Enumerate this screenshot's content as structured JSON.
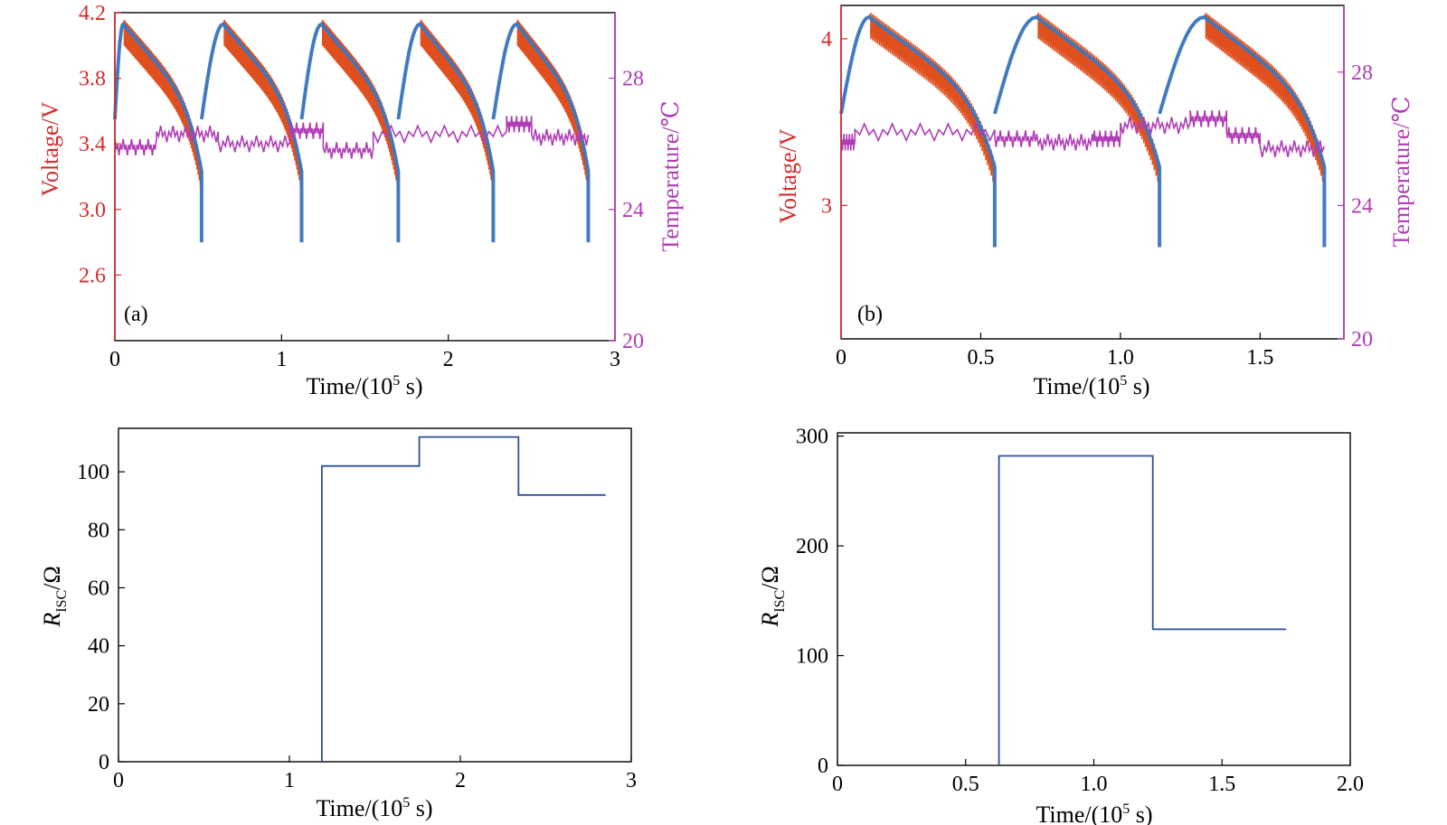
{
  "colors": {
    "voltage_axis": "#d42a2a",
    "temperature_axis": "#b03cb5",
    "measured_voltage": "#e0501e",
    "model_voltage": "#3a78c2",
    "temperature": "#b03cb5",
    "risc": "#2f4f9a",
    "frame": "#000000"
  },
  "chart_data": [
    {
      "id": "a-top",
      "type": "line",
      "panel_label": "(a)",
      "xlabel_prefix": "Time/(10",
      "xlabel_sup": "5",
      "xlabel_suffix": " s)",
      "ylabel": "Voltage/V",
      "y2label": "Temperature/℃",
      "xlim": [
        0,
        3
      ],
      "ylim": [
        2.2,
        4.2
      ],
      "y2lim": [
        20,
        30
      ],
      "xticks": [
        "0",
        "1",
        "2",
        "3"
      ],
      "yticks": [
        "2.6",
        "3.0",
        "3.4",
        "3.8",
        "4.2"
      ],
      "y2ticks": [
        "20",
        "24",
        "28"
      ],
      "cycles": [
        {
          "start": 0.0,
          "peak_x": 0.05,
          "end": 0.52,
          "min_v": 2.8
        },
        {
          "start": 0.52,
          "peak_x": 0.65,
          "end": 1.12,
          "min_v": 2.8
        },
        {
          "start": 1.12,
          "peak_x": 1.24,
          "end": 1.7,
          "min_v": 2.8
        },
        {
          "start": 1.7,
          "peak_x": 1.83,
          "end": 2.27,
          "min_v": 2.8
        },
        {
          "start": 2.27,
          "peak_x": 2.41,
          "end": 2.84,
          "min_v": 2.8
        }
      ],
      "peak_voltage": 4.13,
      "temperature_levels": [
        {
          "x": [
            0.0,
            0.25
          ],
          "t": 25.9
        },
        {
          "x": [
            0.25,
            0.62
          ],
          "t": 26.3
        },
        {
          "x": [
            0.62,
            1.05
          ],
          "t": 26.0
        },
        {
          "x": [
            1.05,
            1.25
          ],
          "t": 26.4
        },
        {
          "x": [
            1.25,
            1.55
          ],
          "t": 25.8
        },
        {
          "x": [
            1.55,
            2.35
          ],
          "t": 26.3
        },
        {
          "x": [
            2.35,
            2.5
          ],
          "t": 26.6
        },
        {
          "x": [
            2.5,
            2.84
          ],
          "t": 26.2
        }
      ]
    },
    {
      "id": "b-top",
      "type": "line",
      "panel_label": "(b)",
      "xlabel_prefix": "Time/(10",
      "xlabel_sup": "5",
      "xlabel_suffix": " s)",
      "ylabel": "Voltage/V",
      "y2label": "Temperature/℃",
      "xlim": [
        0,
        1.8
      ],
      "ylim": [
        2.2,
        4.2
      ],
      "y2lim": [
        20,
        30
      ],
      "xticks": [
        "0",
        "0.5",
        "1.0",
        "1.5"
      ],
      "xtick_values": [
        0,
        0.5,
        1.0,
        1.5
      ],
      "yticks": [
        "3",
        "4"
      ],
      "ytick_values": [
        3,
        4
      ],
      "y2ticks": [
        "20",
        "24",
        "28"
      ],
      "cycles": [
        {
          "start": 0.0,
          "peak_x": 0.1,
          "end": 0.55,
          "min_v": 2.75
        },
        {
          "start": 0.55,
          "peak_x": 0.7,
          "end": 1.14,
          "min_v": 2.75
        },
        {
          "start": 1.14,
          "peak_x": 1.3,
          "end": 1.73,
          "min_v": 2.75
        }
      ],
      "peak_voltage": 4.13,
      "temperature_levels": [
        {
          "x": [
            0.0,
            0.05
          ],
          "t": 25.9
        },
        {
          "x": [
            0.05,
            0.55
          ],
          "t": 26.2
        },
        {
          "x": [
            0.55,
            0.7
          ],
          "t": 26.0
        },
        {
          "x": [
            0.7,
            0.9
          ],
          "t": 25.9
        },
        {
          "x": [
            0.9,
            1.0
          ],
          "t": 26.0
        },
        {
          "x": [
            1.0,
            1.25
          ],
          "t": 26.4
        },
        {
          "x": [
            1.25,
            1.38
          ],
          "t": 26.6
        },
        {
          "x": [
            1.38,
            1.5
          ],
          "t": 26.1
        },
        {
          "x": [
            1.5,
            1.73
          ],
          "t": 25.7
        }
      ]
    },
    {
      "id": "a-bottom",
      "type": "line",
      "step": true,
      "ylabel_main": "R",
      "ylabel_sub": "ISC",
      "ylabel_suffix": "/Ω",
      "xlabel_prefix": "Time/(10",
      "xlabel_sup": "5",
      "xlabel_suffix": " s)",
      "xlim": [
        0,
        3
      ],
      "ylim": [
        0,
        115
      ],
      "xticks": [
        "0",
        "1",
        "2",
        "3"
      ],
      "yticks": [
        "0",
        "20",
        "40",
        "60",
        "80",
        "100"
      ],
      "x": [
        1.19,
        1.19,
        1.76,
        1.76,
        2.34,
        2.34,
        2.85
      ],
      "y": [
        0,
        102,
        102,
        112,
        112,
        92,
        92
      ]
    },
    {
      "id": "b-bottom",
      "type": "line",
      "step": true,
      "ylabel_main": "R",
      "ylabel_sub": "ISC",
      "ylabel_suffix": "/Ω",
      "xlabel_prefix": "Time/(10",
      "xlabel_sup": "5",
      "xlabel_suffix": " s)",
      "xlim": [
        0,
        2.0
      ],
      "ylim": [
        0,
        303
      ],
      "xticks": [
        "0",
        "0.5",
        "1.0",
        "1.5",
        "2.0"
      ],
      "yticks": [
        "0",
        "100",
        "200",
        "300"
      ],
      "x": [
        0.63,
        0.63,
        1.23,
        1.23,
        1.75
      ],
      "y": [
        0,
        282,
        282,
        124,
        124
      ]
    }
  ]
}
